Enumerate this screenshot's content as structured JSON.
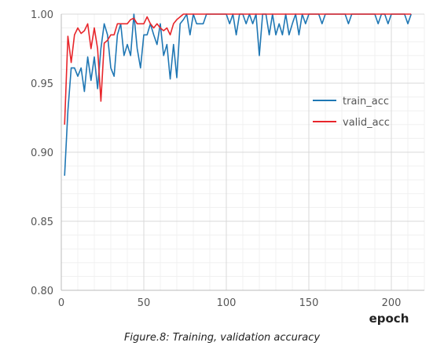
{
  "caption": "Figure.8: Training, validation accuracy",
  "chart_data": {
    "type": "line",
    "title": "",
    "xlabel": "epoch",
    "ylabel": "",
    "xlim": [
      0,
      220
    ],
    "ylim": [
      0.8,
      1.0
    ],
    "xticks": [
      0,
      50,
      100,
      150,
      200
    ],
    "yticks": [
      0.8,
      0.85,
      0.9,
      0.95,
      1.0
    ],
    "grid": true,
    "legend_position": "center-right",
    "series": [
      {
        "name": "train_acc",
        "color": "#1f77b4",
        "x": [
          2,
          4,
          6,
          8,
          10,
          12,
          14,
          16,
          18,
          20,
          22,
          24,
          26,
          28,
          30,
          32,
          34,
          36,
          38,
          40,
          42,
          44,
          46,
          48,
          50,
          52,
          54,
          56,
          58,
          60,
          62,
          64,
          66,
          68,
          70,
          72,
          74,
          76,
          78,
          80,
          82,
          84,
          86,
          88,
          90,
          92,
          94,
          96,
          98,
          100,
          102,
          104,
          106,
          108,
          110,
          112,
          114,
          116,
          118,
          120,
          122,
          124,
          126,
          128,
          130,
          132,
          134,
          136,
          138,
          140,
          142,
          144,
          146,
          148,
          150,
          152,
          154,
          156,
          158,
          160,
          162,
          164,
          166,
          168,
          170,
          172,
          174,
          176,
          178,
          180,
          182,
          184,
          186,
          188,
          190,
          192,
          194,
          196,
          198,
          200,
          202,
          204,
          206,
          208,
          210,
          212
        ],
        "y": [
          0.883,
          0.93,
          0.961,
          0.961,
          0.955,
          0.961,
          0.944,
          0.969,
          0.952,
          0.969,
          0.946,
          0.975,
          0.993,
          0.985,
          0.961,
          0.955,
          0.985,
          0.993,
          0.97,
          0.978,
          0.97,
          1.0,
          0.975,
          0.961,
          0.985,
          0.985,
          0.993,
          0.985,
          0.978,
          0.993,
          0.97,
          0.978,
          0.953,
          0.978,
          0.954,
          0.993,
          0.996,
          1.0,
          0.985,
          1.0,
          0.993,
          0.993,
          0.993,
          1.0,
          1.0,
          1.0,
          1.0,
          1.0,
          1.0,
          1.0,
          0.993,
          1.0,
          0.985,
          1.0,
          1.0,
          0.993,
          1.0,
          0.993,
          1.0,
          0.97,
          1.0,
          1.0,
          0.985,
          1.0,
          0.985,
          0.993,
          0.985,
          1.0,
          0.985,
          0.993,
          1.0,
          0.985,
          1.0,
          0.993,
          1.0,
          1.0,
          1.0,
          1.0,
          0.993,
          1.0,
          1.0,
          1.0,
          1.0,
          1.0,
          1.0,
          1.0,
          0.993,
          1.0,
          1.0,
          1.0,
          1.0,
          1.0,
          1.0,
          1.0,
          1.0,
          0.993,
          1.0,
          1.0,
          0.993,
          1.0,
          1.0,
          1.0,
          1.0,
          1.0,
          0.993,
          1.0
        ]
      },
      {
        "name": "valid_acc",
        "color": "#e8262b",
        "x": [
          2,
          4,
          6,
          8,
          10,
          12,
          14,
          16,
          18,
          20,
          22,
          24,
          26,
          28,
          30,
          32,
          34,
          36,
          38,
          40,
          42,
          44,
          46,
          48,
          50,
          52,
          54,
          56,
          58,
          60,
          62,
          64,
          66,
          68,
          70,
          72,
          74,
          76,
          78,
          80,
          82,
          84,
          86,
          88,
          90,
          92,
          94,
          96,
          98,
          100,
          102,
          104,
          106,
          108,
          110,
          112,
          114,
          116,
          118,
          120,
          122,
          124,
          126,
          128,
          130,
          132,
          134,
          136,
          138,
          140,
          142,
          144,
          146,
          148,
          150,
          152,
          154,
          156,
          158,
          160,
          162,
          164,
          166,
          168,
          170,
          172,
          174,
          176,
          178,
          180,
          182,
          184,
          186,
          188,
          190,
          192,
          194,
          196,
          198,
          200,
          202,
          204,
          206,
          208,
          210,
          212
        ],
        "y": [
          0.92,
          0.984,
          0.965,
          0.985,
          0.99,
          0.986,
          0.988,
          0.993,
          0.975,
          0.99,
          0.975,
          0.937,
          0.979,
          0.981,
          0.985,
          0.985,
          0.993,
          0.993,
          0.993,
          0.993,
          0.996,
          0.997,
          0.993,
          0.993,
          0.993,
          0.998,
          0.993,
          0.99,
          0.993,
          0.99,
          0.988,
          0.99,
          0.985,
          0.993,
          0.996,
          0.998,
          1.0,
          1.0,
          1.0,
          1.0,
          1.0,
          1.0,
          1.0,
          1.0,
          1.0,
          1.0,
          1.0,
          1.0,
          1.0,
          1.0,
          1.0,
          1.0,
          1.0,
          1.0,
          1.0,
          1.0,
          1.0,
          1.0,
          1.0,
          1.0,
          1.0,
          1.0,
          1.0,
          1.0,
          1.0,
          1.0,
          1.0,
          1.0,
          1.0,
          1.0,
          1.0,
          1.0,
          1.0,
          1.0,
          1.0,
          1.0,
          1.0,
          1.0,
          1.0,
          1.0,
          1.0,
          1.0,
          1.0,
          1.0,
          1.0,
          1.0,
          1.0,
          1.0,
          1.0,
          1.0,
          1.0,
          1.0,
          1.0,
          1.0,
          1.0,
          1.0,
          1.0,
          1.0,
          1.0,
          1.0,
          1.0,
          1.0,
          1.0,
          1.0,
          1.0,
          1.0
        ]
      }
    ]
  }
}
